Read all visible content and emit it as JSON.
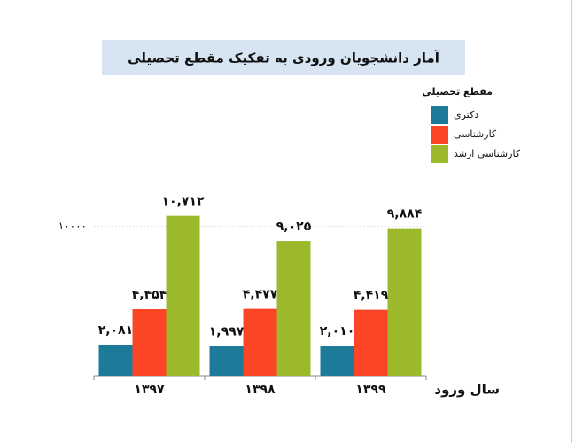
{
  "chart_data": {
    "type": "bar",
    "title": "آمار دانشجویان ورودی به تفکیک مقطع تحصیلی",
    "x_label": "سال ورود",
    "legend_title": "مقطع تحصیلی",
    "categories": [
      "۱۳۹۷",
      "۱۳۹۸",
      "۱۳۹۹"
    ],
    "series": [
      {
        "name": "دکتری",
        "color": "#1d7b99",
        "values": [
          2081,
          1997,
          2010
        ],
        "value_labels": [
          "۲,۰۸۱",
          "۱,۹۹۷",
          "۲,۰۱۰"
        ]
      },
      {
        "name": "کارشناسی",
        "color": "#fc4426",
        "values": [
          4454,
          4477,
          4419
        ],
        "value_labels": [
          "۴,۴۵۴",
          "۴,۴۷۷",
          "۴,۴۱۹"
        ]
      },
      {
        "name": "کارشناسی ارشد",
        "color": "#9bb92a",
        "values": [
          10712,
          9025,
          9884
        ],
        "value_labels": [
          "۱۰,۷۱۲",
          "۹,۰۲۵",
          "۹,۸۸۴"
        ]
      }
    ],
    "ylim": [
      0,
      12000
    ],
    "yticks": [
      {
        "value": 10000,
        "label": "۱۰۰۰۰"
      }
    ],
    "grid": true
  }
}
